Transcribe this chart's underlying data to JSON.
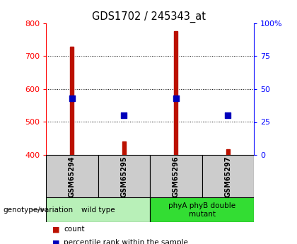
{
  "title": "GDS1702 / 245343_at",
  "samples": [
    "GSM65294",
    "GSM65295",
    "GSM65296",
    "GSM65297"
  ],
  "count_values": [
    728,
    440,
    775,
    418
  ],
  "count_base": 400,
  "percentile_values": [
    43,
    30,
    43,
    30
  ],
  "left_ylim": [
    400,
    800
  ],
  "left_yticks": [
    400,
    500,
    600,
    700,
    800
  ],
  "right_ylim": [
    0,
    100
  ],
  "right_yticks": [
    0,
    25,
    50,
    75,
    100
  ],
  "right_yticklabels": [
    "0",
    "25",
    "50",
    "75",
    "100%"
  ],
  "groups": [
    {
      "label": "wild type",
      "samples": [
        0,
        1
      ],
      "color": "#b8f0b8"
    },
    {
      "label": "phyA phyB double\nmutant",
      "samples": [
        2,
        3
      ],
      "color": "#33dd33"
    }
  ],
  "bar_color": "#bb1100",
  "dot_color": "#0000bb",
  "sample_box_color": "#cccccc",
  "bar_width": 0.08,
  "dot_size": 40,
  "geno_label": "genotype/variation",
  "legend_items": [
    {
      "color": "#bb1100",
      "label": "count"
    },
    {
      "color": "#0000bb",
      "label": "percentile rank within the sample"
    }
  ]
}
